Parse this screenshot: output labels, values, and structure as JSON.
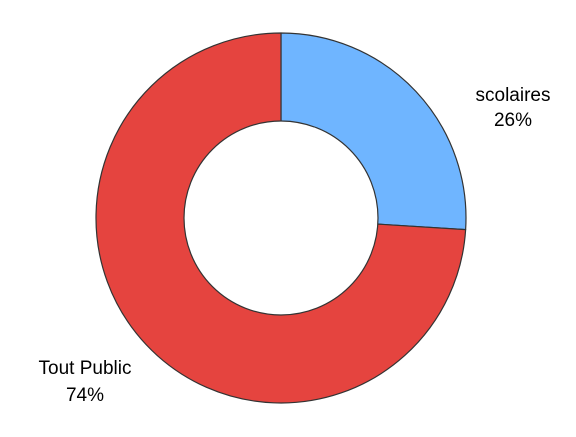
{
  "chart_data": {
    "type": "pie",
    "donut": true,
    "title": "",
    "slices": [
      {
        "name": "scolaires",
        "value": 26,
        "label": "26%",
        "color": "#6FB5FF"
      },
      {
        "name": "Tout Public",
        "value": 74,
        "label": "74%",
        "color": "#E5443F"
      }
    ],
    "start_angle_deg": 0,
    "direction": "clockwise",
    "legend": "none",
    "stroke_color": "#333333"
  }
}
